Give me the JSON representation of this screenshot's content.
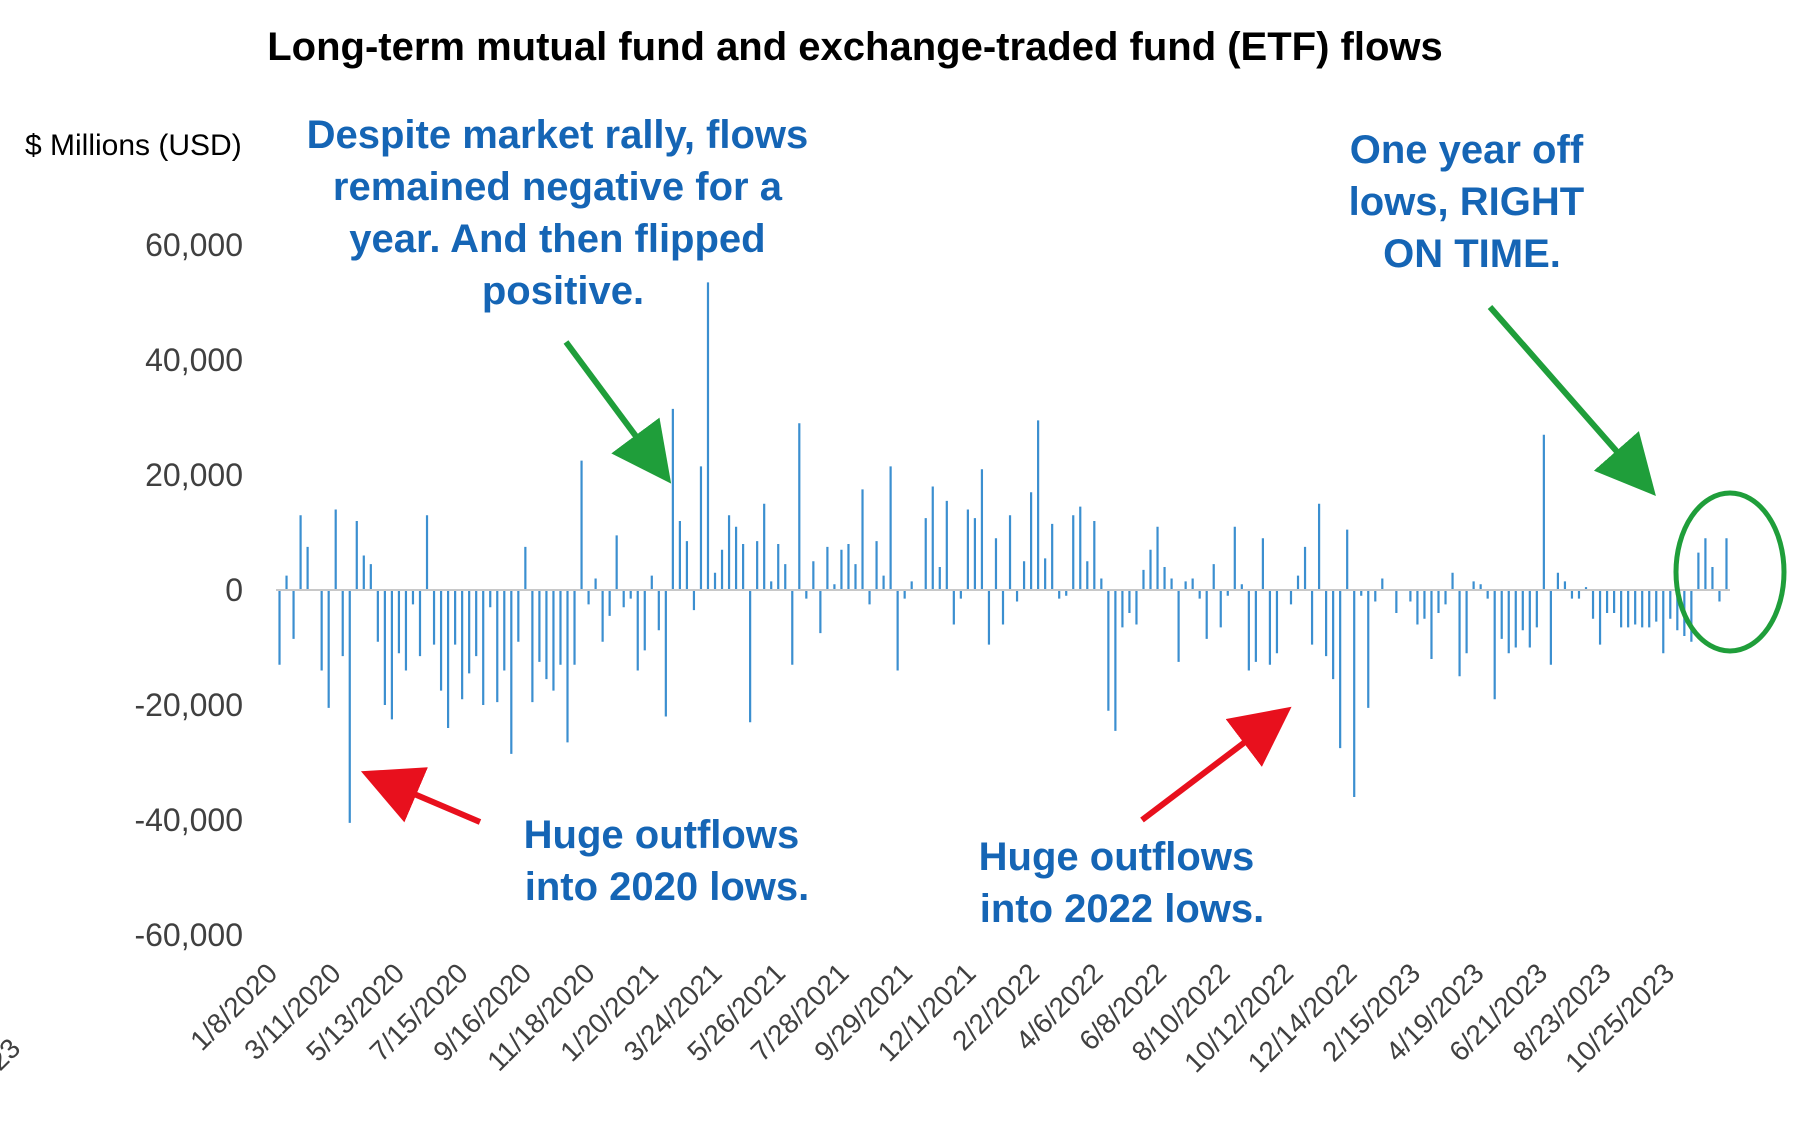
{
  "chart_data": {
    "type": "bar",
    "title": "Long-term mutual fund and exchange-traded fund (ETF) flows",
    "ylabel": "$ Millions (USD)",
    "xlabel": "",
    "ylim": [
      -60000,
      60000
    ],
    "yticks": [
      "60,000",
      "40,000",
      "20,000",
      "0",
      "-20,000",
      "-40,000",
      "-60,000"
    ],
    "ytick_values": [
      60000,
      40000,
      20000,
      0,
      -20000,
      -40000,
      -60000
    ],
    "xtick_labels": [
      "1/8/2020",
      "3/11/2020",
      "5/13/2020",
      "7/15/2020",
      "9/16/2020",
      "11/18/2020",
      "1/20/2021",
      "3/24/2021",
      "5/26/2021",
      "7/28/2021",
      "9/29/2021",
      "12/1/2021",
      "2/2/2022",
      "4/6/2022",
      "6/8/2022",
      "8/10/2022",
      "10/12/2022",
      "12/14/2022",
      "2/15/2023",
      "4/19/2023",
      "6/21/2023",
      "8/23/2023",
      "10/25/2023"
    ],
    "edge_label": "23",
    "grid": false,
    "bar_color": "#3b8fd0",
    "values": [
      -13000,
      2500,
      -8500,
      13000,
      7500,
      0,
      -14000,
      -20500,
      14000,
      -11500,
      -40500,
      12000,
      6000,
      4500,
      -9000,
      -20000,
      -22500,
      -11000,
      -14000,
      -2500,
      -11500,
      13000,
      -9500,
      -17500,
      -24000,
      -9500,
      -19000,
      -14500,
      -11500,
      -20000,
      -3000,
      -19500,
      -14000,
      -28500,
      -9000,
      7500,
      -19500,
      -12500,
      -15500,
      -17500,
      -13000,
      -26500,
      -13000,
      22500,
      -2500,
      2000,
      -9000,
      -4500,
      9500,
      -3000,
      -1500,
      -14000,
      -10500,
      2500,
      -7000,
      -22000,
      31500,
      12000,
      8500,
      -3500,
      21500,
      53500,
      3000,
      7000,
      13000,
      11000,
      8000,
      -23000,
      8500,
      15000,
      1500,
      8000,
      4500,
      -13000,
      29000,
      -1500,
      5000,
      -7500,
      7500,
      1000,
      7000,
      8000,
      4500,
      17500,
      -2500,
      8500,
      2500,
      21500,
      -14000,
      -1500,
      1500,
      0,
      12500,
      18000,
      4000,
      15500,
      -6000,
      -1500,
      14000,
      12500,
      21000,
      -9500,
      9000,
      -6000,
      13000,
      -2000,
      5000,
      17000,
      29500,
      5500,
      11500,
      -1500,
      -1000,
      13000,
      14500,
      5000,
      12000,
      2000,
      -21000,
      -24500,
      -6500,
      -4000,
      -6000,
      3500,
      7000,
      11000,
      4000,
      2000,
      -12500,
      1500,
      2000,
      -1500,
      -8500,
      4500,
      -6500,
      -1000,
      11000,
      1000,
      -14000,
      -12500,
      9000,
      -13000,
      -11000,
      0,
      -2500,
      2500,
      7500,
      -9500,
      15000,
      -11500,
      -15500,
      -27500,
      10500,
      -36000,
      -1000,
      -20500,
      -2000,
      2000,
      0,
      -4000,
      0,
      -2000,
      -6000,
      -5000,
      -12000,
      -4000,
      -2500,
      3000,
      -15000,
      -11000,
      1500,
      1000,
      -1500,
      -19000,
      -8500,
      -11000,
      -10000,
      -7000,
      -10000,
      -6500,
      27000,
      -13000,
      3000,
      1500,
      -1500,
      -1500,
      500,
      -5000,
      -9500,
      -4000,
      -4000,
      -6500,
      -6500,
      -6000,
      -6500,
      -6500,
      -5500,
      -11000,
      -5000,
      -7000,
      -8000,
      -9000,
      6500,
      9000,
      4000,
      -2000,
      9000
    ]
  },
  "annotations": {
    "top_center": [
      "Despite market rally, flows",
      "remained negative for a",
      "year.  And then flipped",
      "positive."
    ],
    "top_right": [
      "One year off",
      "lows, RIGHT",
      "ON TIME."
    ],
    "bottom_left": [
      "Huge outflows",
      "into 2020 lows."
    ],
    "bottom_right": [
      "Huge outflows",
      "into 2022 lows."
    ]
  },
  "colors": {
    "annotation_text": "#1565b5",
    "arrow_green": "#1f9e3a",
    "arrow_red": "#e8101d",
    "highlight_circle": "#1f9e3a",
    "bars": "#3b8fd0"
  }
}
